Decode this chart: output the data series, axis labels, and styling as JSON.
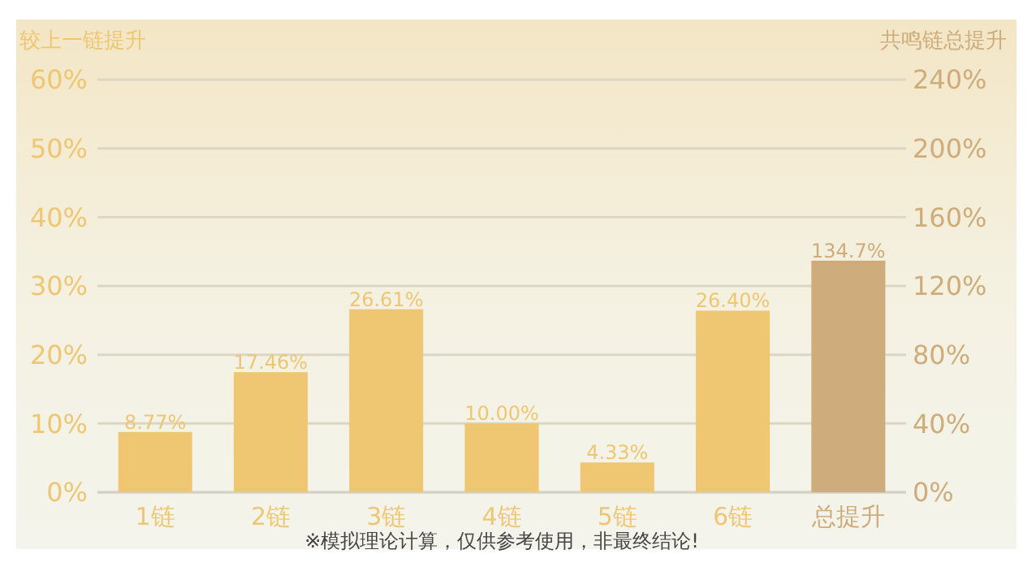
{
  "chart_data": {
    "type": "bar",
    "ylabel": "较上一链提升",
    "y2label": "共鸣链总提升",
    "categories": [
      "1链",
      "2链",
      "3链",
      "4链",
      "5链",
      "6链",
      "总提升"
    ],
    "series": [
      {
        "color": "#efc672",
        "values": [
          8.77,
          17.46,
          26.61,
          10.0,
          4.33,
          26.4,
          null
        ],
        "value_labels": [
          "8.77%",
          "17.46%",
          "26.61%",
          "10.00%",
          "4.33%",
          "26.40%",
          null
        ]
      },
      {
        "color": "#cfac7b",
        "axis": "y2",
        "values": [
          null,
          null,
          null,
          null,
          null,
          null,
          134.7
        ],
        "value_labels": [
          null,
          null,
          null,
          null,
          null,
          null,
          "134.7%"
        ]
      }
    ],
    "ylim": [
      0,
      60
    ],
    "yticks": [
      {
        "value": 0,
        "label": "0%"
      },
      {
        "value": 10,
        "label": "10%"
      },
      {
        "value": 20,
        "label": "20%"
      },
      {
        "value": 30,
        "label": "30%"
      },
      {
        "value": 40,
        "label": "40%"
      },
      {
        "value": 50,
        "label": "50%"
      },
      {
        "value": 60,
        "label": "60%"
      }
    ],
    "y2lim": [
      0,
      240
    ],
    "y2ticks": [
      {
        "value": 0,
        "label": "0%"
      },
      {
        "value": 40,
        "label": "40%"
      },
      {
        "value": 80,
        "label": "80%"
      },
      {
        "value": 120,
        "label": "120%"
      },
      {
        "value": 160,
        "label": "160%"
      },
      {
        "value": 200,
        "label": "200%"
      },
      {
        "value": 240,
        "label": "240%"
      }
    ],
    "grid": "y",
    "annotations": [
      "※模拟理论计算，仅供参考使用，非最终结论!"
    ]
  }
}
